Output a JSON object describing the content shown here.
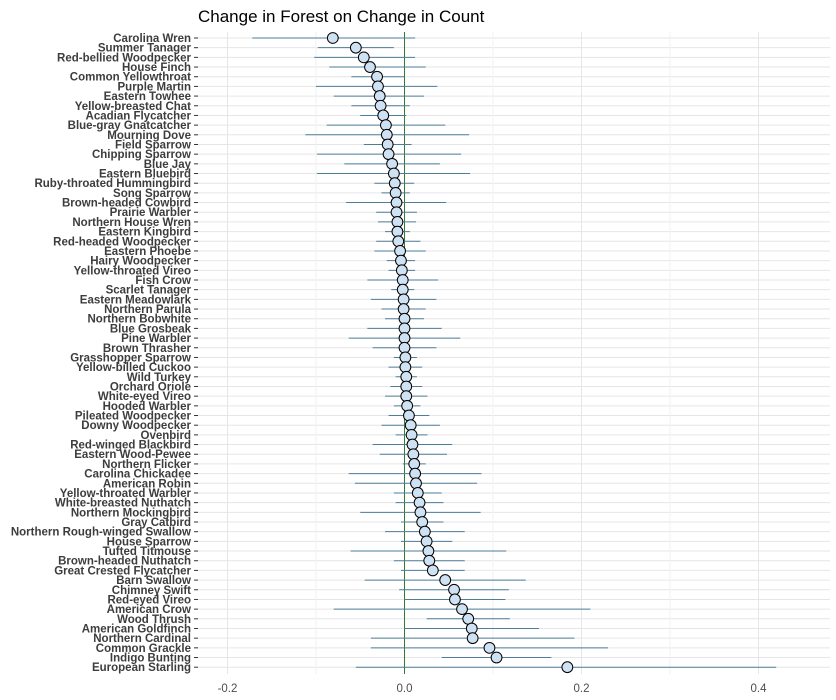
{
  "chart_data": {
    "type": "forest",
    "title": "Change in Forest on Change in Count",
    "xlabel": "",
    "ylabel": "",
    "xlim": [
      -0.2,
      0.48
    ],
    "xticks": [
      "-0.2",
      "0.0",
      "0.2",
      "0.4"
    ],
    "xtick_values": [
      -0.2,
      0.0,
      0.2,
      0.4
    ],
    "reference_line": 0,
    "grid": true,
    "colors": {
      "ci": "#4e7d99",
      "point_fill": "#cfe2f3",
      "point_stroke": "#000000",
      "reference": "#2e7d32"
    },
    "series": [
      {
        "label": "Carolina Wren",
        "estimate": -0.081,
        "lower": -0.172,
        "upper": 0.012
      },
      {
        "label": "Summer Tanager",
        "estimate": -0.055,
        "lower": -0.098,
        "upper": -0.012
      },
      {
        "label": "Red-bellied Woodpecker",
        "estimate": -0.046,
        "lower": -0.102,
        "upper": 0.012
      },
      {
        "label": "House Finch",
        "estimate": -0.039,
        "lower": -0.085,
        "upper": 0.024
      },
      {
        "label": "Common Yellowthroat",
        "estimate": -0.031,
        "lower": -0.06,
        "upper": 0.0
      },
      {
        "label": "Purple Martin",
        "estimate": -0.03,
        "lower": -0.1,
        "upper": 0.037
      },
      {
        "label": "Eastern Towhee",
        "estimate": -0.028,
        "lower": -0.08,
        "upper": 0.022
      },
      {
        "label": "Yellow-breasted Chat",
        "estimate": -0.027,
        "lower": -0.06,
        "upper": 0.006
      },
      {
        "label": "Acadian Flycatcher",
        "estimate": -0.024,
        "lower": -0.05,
        "upper": 0.002
      },
      {
        "label": "Blue-gray Gnatcatcher",
        "estimate": -0.021,
        "lower": -0.088,
        "upper": 0.046
      },
      {
        "label": "Mourning Dove",
        "estimate": -0.02,
        "lower": -0.112,
        "upper": 0.073
      },
      {
        "label": "Field Sparrow",
        "estimate": -0.019,
        "lower": -0.046,
        "upper": 0.008
      },
      {
        "label": "Chipping Sparrow",
        "estimate": -0.018,
        "lower": -0.099,
        "upper": 0.064
      },
      {
        "label": "Blue Jay",
        "estimate": -0.014,
        "lower": -0.068,
        "upper": 0.04
      },
      {
        "label": "Eastern Bluebird",
        "estimate": -0.012,
        "lower": -0.099,
        "upper": 0.074
      },
      {
        "label": "Ruby-throated Hummingbird",
        "estimate": -0.011,
        "lower": -0.034,
        "upper": 0.011
      },
      {
        "label": "Song Sparrow",
        "estimate": -0.01,
        "lower": -0.026,
        "upper": 0.006
      },
      {
        "label": "Brown-headed Cowbird",
        "estimate": -0.009,
        "lower": -0.066,
        "upper": 0.047
      },
      {
        "label": "Prairie Warbler",
        "estimate": -0.009,
        "lower": -0.032,
        "upper": 0.014
      },
      {
        "label": "Northern House Wren",
        "estimate": -0.008,
        "lower": -0.03,
        "upper": 0.013
      },
      {
        "label": "Eastern Kingbird",
        "estimate": -0.008,
        "lower": -0.022,
        "upper": 0.006
      },
      {
        "label": "Red-headed Woodpecker",
        "estimate": -0.007,
        "lower": -0.032,
        "upper": 0.018
      },
      {
        "label": "Eastern Phoebe",
        "estimate": -0.005,
        "lower": -0.034,
        "upper": 0.024
      },
      {
        "label": "Hairy Woodpecker",
        "estimate": -0.004,
        "lower": -0.02,
        "upper": 0.012
      },
      {
        "label": "Yellow-throated Vireo",
        "estimate": -0.003,
        "lower": -0.018,
        "upper": 0.012
      },
      {
        "label": "Fish Crow",
        "estimate": -0.002,
        "lower": -0.042,
        "upper": 0.038
      },
      {
        "label": "Scarlet Tanager",
        "estimate": -0.002,
        "lower": -0.015,
        "upper": 0.011
      },
      {
        "label": "Eastern Meadowlark",
        "estimate": -0.001,
        "lower": -0.038,
        "upper": 0.036
      },
      {
        "label": "Northern Parula",
        "estimate": -0.001,
        "lower": -0.026,
        "upper": 0.024
      },
      {
        "label": "Northern Bobwhite",
        "estimate": 0.0,
        "lower": -0.022,
        "upper": 0.022
      },
      {
        "label": "Blue Grosbeak",
        "estimate": 0.0,
        "lower": -0.042,
        "upper": 0.042
      },
      {
        "label": "Pine Warbler",
        "estimate": 0.0,
        "lower": -0.063,
        "upper": 0.063
      },
      {
        "label": "Brown Thrasher",
        "estimate": 0.0,
        "lower": -0.036,
        "upper": 0.036
      },
      {
        "label": "Grasshopper Sparrow",
        "estimate": 0.001,
        "lower": -0.012,
        "upper": 0.014
      },
      {
        "label": "Yellow-billed Cuckoo",
        "estimate": 0.001,
        "lower": -0.018,
        "upper": 0.02
      },
      {
        "label": "Wild Turkey",
        "estimate": 0.002,
        "lower": -0.01,
        "upper": 0.014
      },
      {
        "label": "Orchard Oriole",
        "estimate": 0.002,
        "lower": -0.016,
        "upper": 0.02
      },
      {
        "label": "White-eyed Vireo",
        "estimate": 0.002,
        "lower": -0.022,
        "upper": 0.026
      },
      {
        "label": "Hooded Warbler",
        "estimate": 0.003,
        "lower": -0.012,
        "upper": 0.018
      },
      {
        "label": "Pileated Woodpecker",
        "estimate": 0.005,
        "lower": -0.018,
        "upper": 0.028
      },
      {
        "label": "Downy Woodpecker",
        "estimate": 0.007,
        "lower": -0.026,
        "upper": 0.04
      },
      {
        "label": "Ovenbird",
        "estimate": 0.008,
        "lower": -0.01,
        "upper": 0.026
      },
      {
        "label": "Red-winged Blackbird",
        "estimate": 0.009,
        "lower": -0.036,
        "upper": 0.054
      },
      {
        "label": "Eastern Wood-Pewee",
        "estimate": 0.01,
        "lower": -0.028,
        "upper": 0.048
      },
      {
        "label": "Northern Flicker",
        "estimate": 0.011,
        "lower": -0.002,
        "upper": 0.024
      },
      {
        "label": "Carolina Chickadee",
        "estimate": 0.012,
        "lower": -0.063,
        "upper": 0.087
      },
      {
        "label": "American Robin",
        "estimate": 0.013,
        "lower": -0.056,
        "upper": 0.082
      },
      {
        "label": "Yellow-throated Warbler",
        "estimate": 0.015,
        "lower": -0.012,
        "upper": 0.042
      },
      {
        "label": "White-breasted Nuthatch",
        "estimate": 0.017,
        "lower": -0.01,
        "upper": 0.044
      },
      {
        "label": "Northern Mockingbird",
        "estimate": 0.018,
        "lower": -0.05,
        "upper": 0.086
      },
      {
        "label": "Gray Catbird",
        "estimate": 0.02,
        "lower": -0.004,
        "upper": 0.044
      },
      {
        "label": "Northern Rough-winged Swallow",
        "estimate": 0.023,
        "lower": -0.022,
        "upper": 0.068
      },
      {
        "label": "House Sparrow",
        "estimate": 0.025,
        "lower": -0.004,
        "upper": 0.054
      },
      {
        "label": "Tufted Titmouse",
        "estimate": 0.027,
        "lower": -0.061,
        "upper": 0.115
      },
      {
        "label": "Brown-headed Nuthatch",
        "estimate": 0.028,
        "lower": -0.012,
        "upper": 0.068
      },
      {
        "label": "Great Crested Flycatcher",
        "estimate": 0.032,
        "lower": -0.004,
        "upper": 0.068
      },
      {
        "label": "Barn Swallow",
        "estimate": 0.046,
        "lower": -0.045,
        "upper": 0.137
      },
      {
        "label": "Chimney Swift",
        "estimate": 0.056,
        "lower": -0.006,
        "upper": 0.118
      },
      {
        "label": "Red-eyed Vireo",
        "estimate": 0.057,
        "lower": 0.0,
        "upper": 0.114
      },
      {
        "label": "American Crow",
        "estimate": 0.065,
        "lower": -0.08,
        "upper": 0.21
      },
      {
        "label": "Wood Thrush",
        "estimate": 0.072,
        "lower": 0.025,
        "upper": 0.119
      },
      {
        "label": "American Goldfinch",
        "estimate": 0.076,
        "lower": 0.0,
        "upper": 0.152
      },
      {
        "label": "Northern Cardinal",
        "estimate": 0.077,
        "lower": -0.038,
        "upper": 0.192
      },
      {
        "label": "Common Grackle",
        "estimate": 0.096,
        "lower": -0.038,
        "upper": 0.23
      },
      {
        "label": "Indigo Bunting",
        "estimate": 0.104,
        "lower": 0.042,
        "upper": 0.166
      },
      {
        "label": "European Starling",
        "estimate": 0.184,
        "lower": -0.055,
        "upper": 0.42
      }
    ]
  }
}
